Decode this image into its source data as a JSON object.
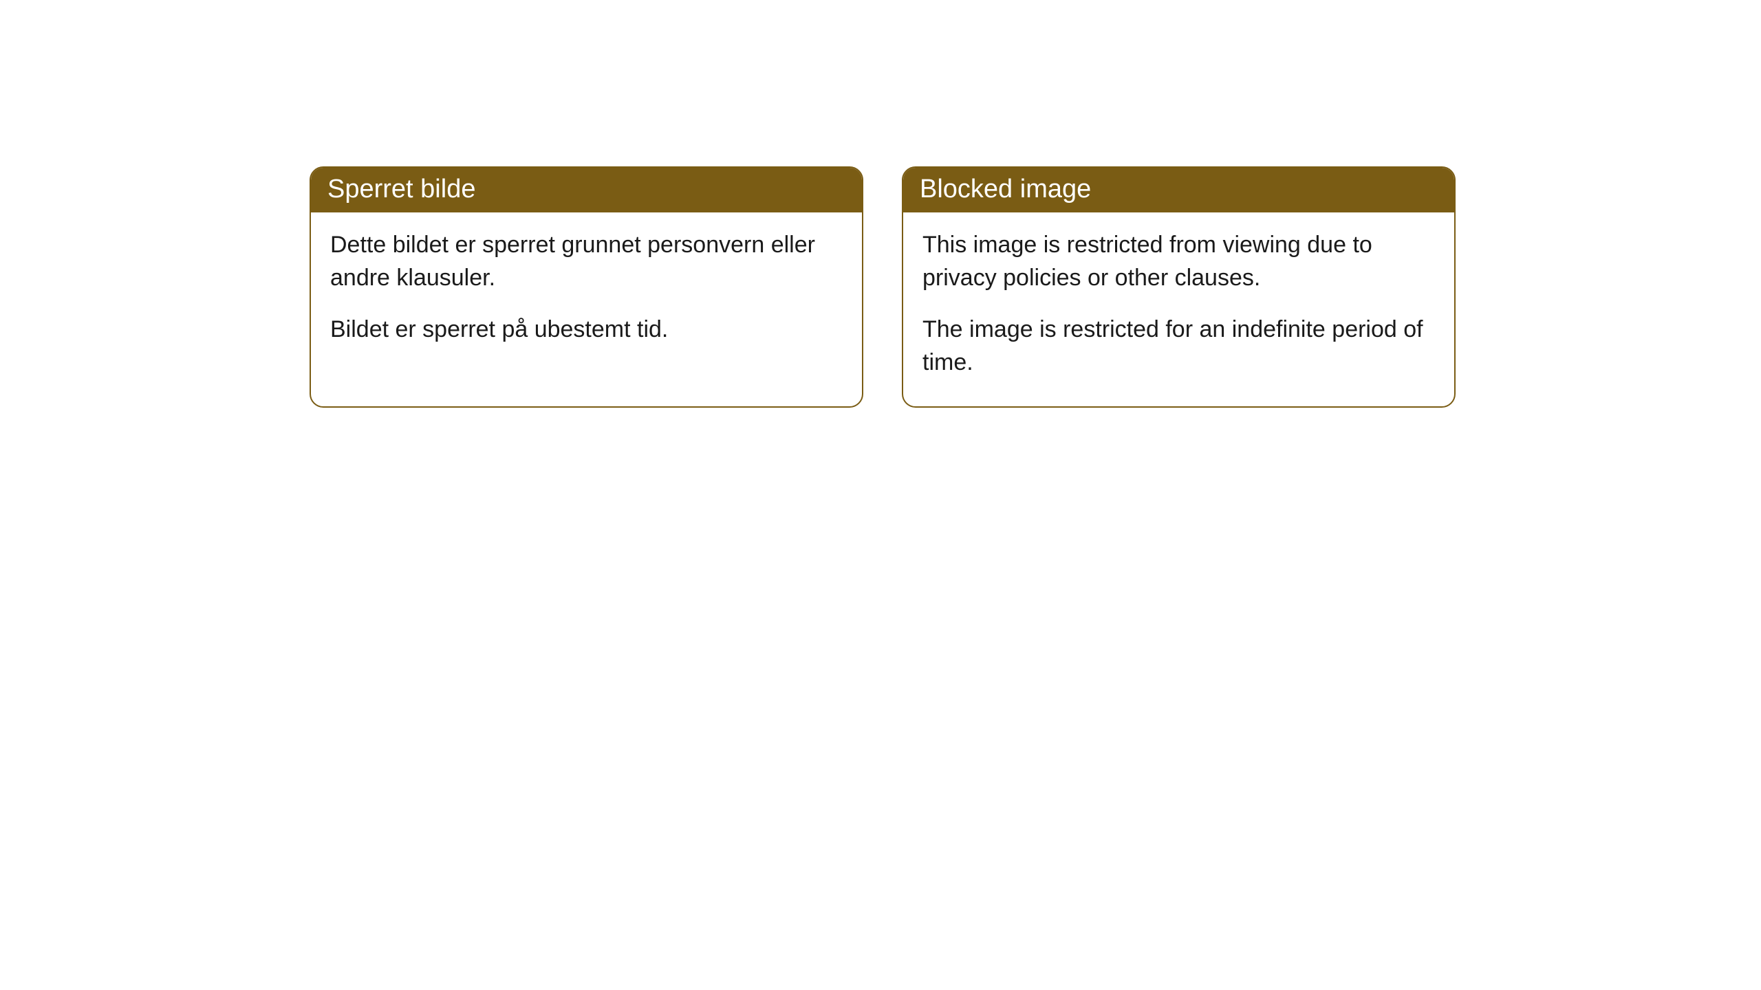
{
  "cards": [
    {
      "header": "Sperret bilde",
      "paragraph1": "Dette bildet er sperret grunnet personvern eller andre klausuler.",
      "paragraph2": "Bildet er sperret på ubestemt tid."
    },
    {
      "header": "Blocked image",
      "paragraph1": "This image is restricted from viewing due to privacy policies or other clauses.",
      "paragraph2": "The image is restricted for an indefinite period of time."
    }
  ],
  "styling": {
    "header_background": "#7a5c14",
    "header_text_color": "#ffffff",
    "body_text_color": "#1a1a1a",
    "border_color": "#7a5c14",
    "background_color": "#ffffff",
    "border_radius": 20,
    "header_fontsize": 38,
    "body_fontsize": 34
  }
}
